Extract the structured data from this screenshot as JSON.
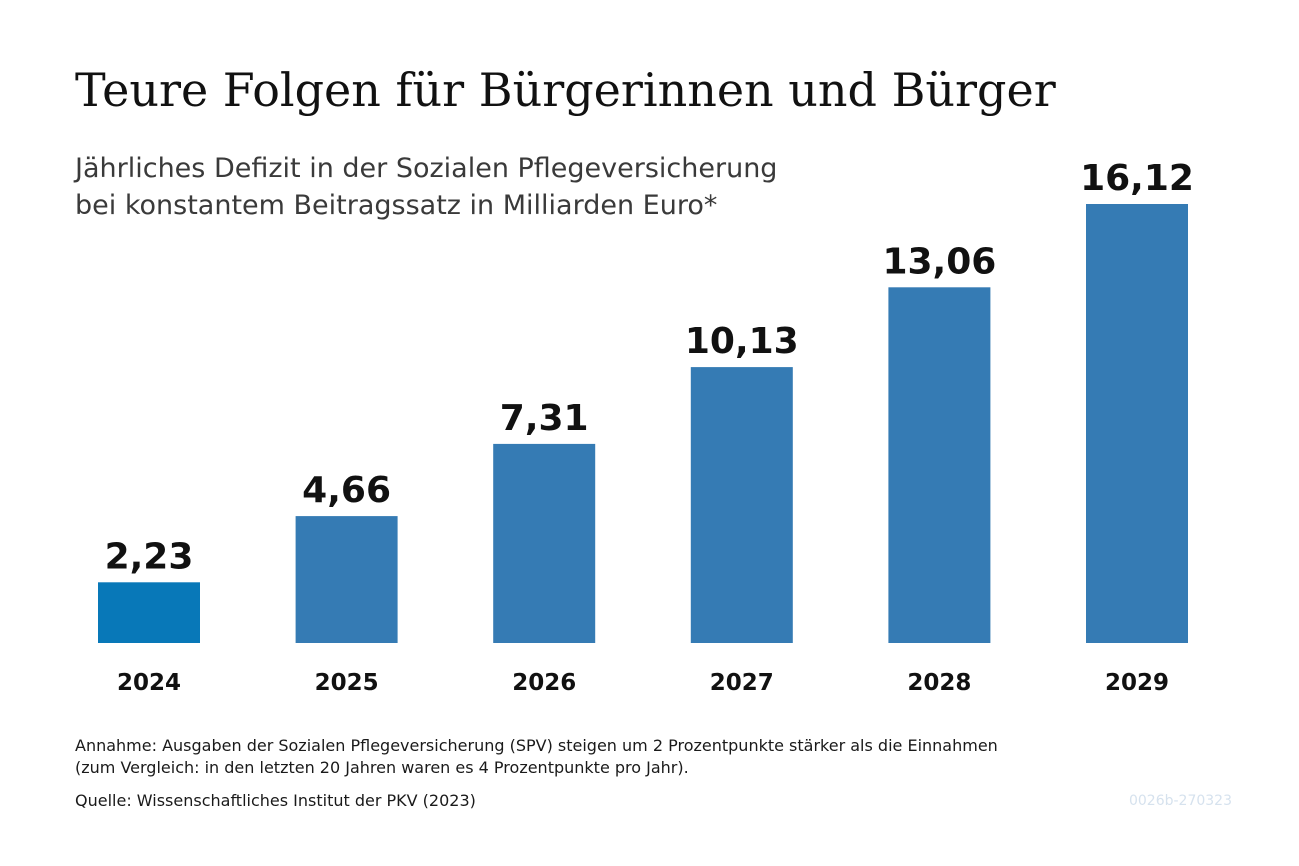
{
  "chart_data": {
    "type": "bar",
    "title": "Teure Folgen für Bürgerinnen und Bürger",
    "subtitle": [
      "Jährliches Defizit in der Sozialen Pflegeversicherung",
      "bei konstantem Beitragssatz in Milliarden Euro*"
    ],
    "categories": [
      "2024",
      "2025",
      "2026",
      "2027",
      "2028",
      "2029"
    ],
    "values": [
      2.23,
      4.66,
      7.31,
      10.13,
      13.06,
      16.12
    ],
    "value_labels": [
      "2,23",
      "4,66",
      "7,31",
      "10,13",
      "13,06",
      "16,12"
    ],
    "xlabel": "",
    "ylabel": "",
    "ylim": [
      0,
      16.12
    ],
    "grid": false,
    "legend": "none",
    "colors": {
      "bar": "#357bb4",
      "first_bar": "#0878b8"
    }
  },
  "footer": {
    "note_lines": [
      "Annahme: Ausgaben der Sozialen Pflegeversicherung (SPV) steigen um 2 Prozentpunkte stärker als die Einnahmen",
      "(zum Vergleich: in den letzten 20 Jahren waren es 4 Prozentpunkte pro Jahr)."
    ],
    "source": "Quelle: Wissenschaftliches Institut der PKV (2023)",
    "code": "0026b-270323"
  }
}
